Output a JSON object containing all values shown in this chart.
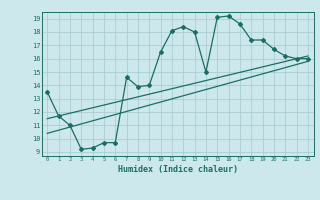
{
  "xlabel": "Humidex (Indice chaleur)",
  "ylabel": "",
  "bg_color": "#cde8ec",
  "grid_color": "#aacdd4",
  "line_color": "#1a6e64",
  "xlim": [
    -0.5,
    23.5
  ],
  "ylim": [
    8.7,
    19.5
  ],
  "xticks": [
    0,
    1,
    2,
    3,
    4,
    5,
    6,
    7,
    8,
    9,
    10,
    11,
    12,
    13,
    14,
    15,
    16,
    17,
    18,
    19,
    20,
    21,
    22,
    23
  ],
  "yticks": [
    9,
    10,
    11,
    12,
    13,
    14,
    15,
    16,
    17,
    18,
    19
  ],
  "main_x": [
    0,
    1,
    2,
    3,
    4,
    5,
    6,
    7,
    8,
    9,
    10,
    11,
    12,
    13,
    14,
    15,
    16,
    17,
    18,
    19,
    20,
    21,
    22,
    23
  ],
  "main_y": [
    13.5,
    11.7,
    11.0,
    9.2,
    9.3,
    9.7,
    9.7,
    14.6,
    13.9,
    14.0,
    16.5,
    18.1,
    18.4,
    18.0,
    15.0,
    19.1,
    19.2,
    18.6,
    17.4,
    17.4,
    16.7,
    16.2,
    16.0,
    16.0
  ],
  "line1_x": [
    0,
    23
  ],
  "line1_y": [
    11.5,
    16.2
  ],
  "line2_x": [
    0,
    23
  ],
  "line2_y": [
    10.4,
    15.8
  ]
}
